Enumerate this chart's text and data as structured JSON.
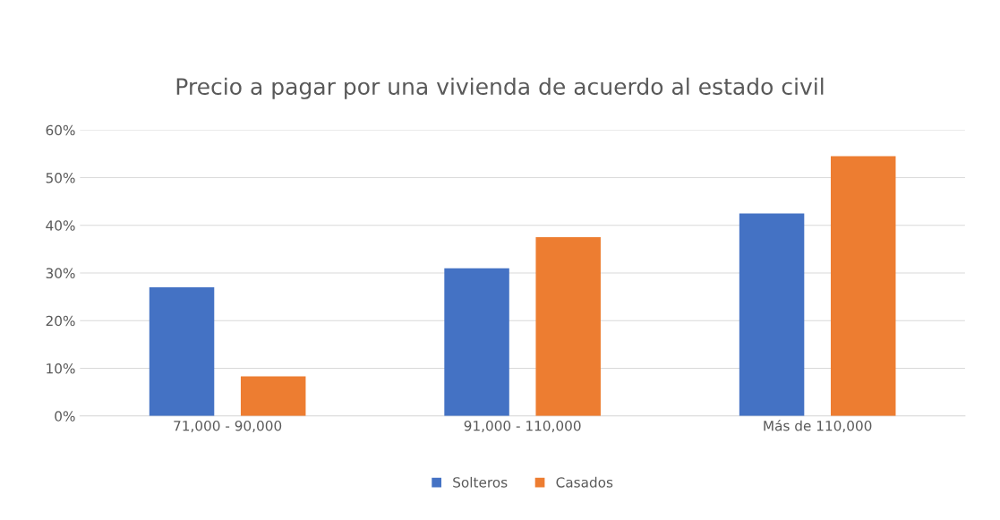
{
  "chart_data": {
    "type": "bar",
    "title": "Precio a pagar por una vivienda de acuerdo al estado civil",
    "categories": [
      "71,000 - 90,000",
      "91,000 - 110,000",
      "Más de 110,000"
    ],
    "series": [
      {
        "name": "Solteros",
        "color": "#4472c4",
        "values": [
          27,
          31,
          42.5
        ]
      },
      {
        "name": "Casados",
        "color": "#ed7d31",
        "values": [
          8.3,
          37.5,
          54.5
        ]
      }
    ],
    "ylim": [
      0,
      60
    ],
    "yticks": [
      {
        "value": 0,
        "label": "0%"
      },
      {
        "value": 10,
        "label": "10%"
      },
      {
        "value": 20,
        "label": "20%"
      },
      {
        "value": 30,
        "label": "30%"
      },
      {
        "value": 40,
        "label": "40%"
      },
      {
        "value": 50,
        "label": "50%"
      },
      {
        "value": 60,
        "label": "60%"
      }
    ],
    "grid": "y",
    "legend": "bottom"
  }
}
